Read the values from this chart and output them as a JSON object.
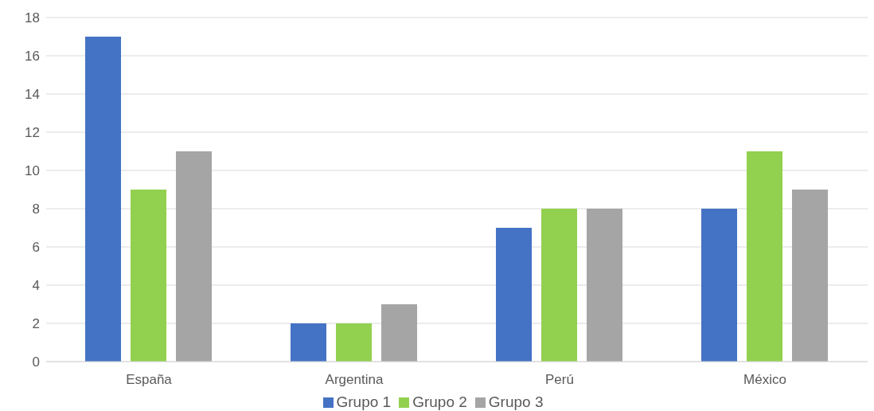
{
  "chart_data": {
    "type": "bar",
    "categories": [
      "España",
      "Argentina",
      "Perú",
      "México"
    ],
    "series": [
      {
        "name": "Grupo 1",
        "color": "#4472c4",
        "values": [
          17,
          2,
          7,
          8
        ]
      },
      {
        "name": "Grupo 2",
        "color": "#92d050",
        "values": [
          9,
          2,
          8,
          11
        ]
      },
      {
        "name": "Grupo 3",
        "color": "#a5a5a5",
        "values": [
          11,
          3,
          8,
          9
        ]
      }
    ],
    "ylim": [
      0,
      18
    ],
    "yticks": [
      0,
      2,
      4,
      6,
      8,
      10,
      12,
      14,
      16,
      18
    ],
    "grid": "y",
    "legend": "bottom"
  }
}
